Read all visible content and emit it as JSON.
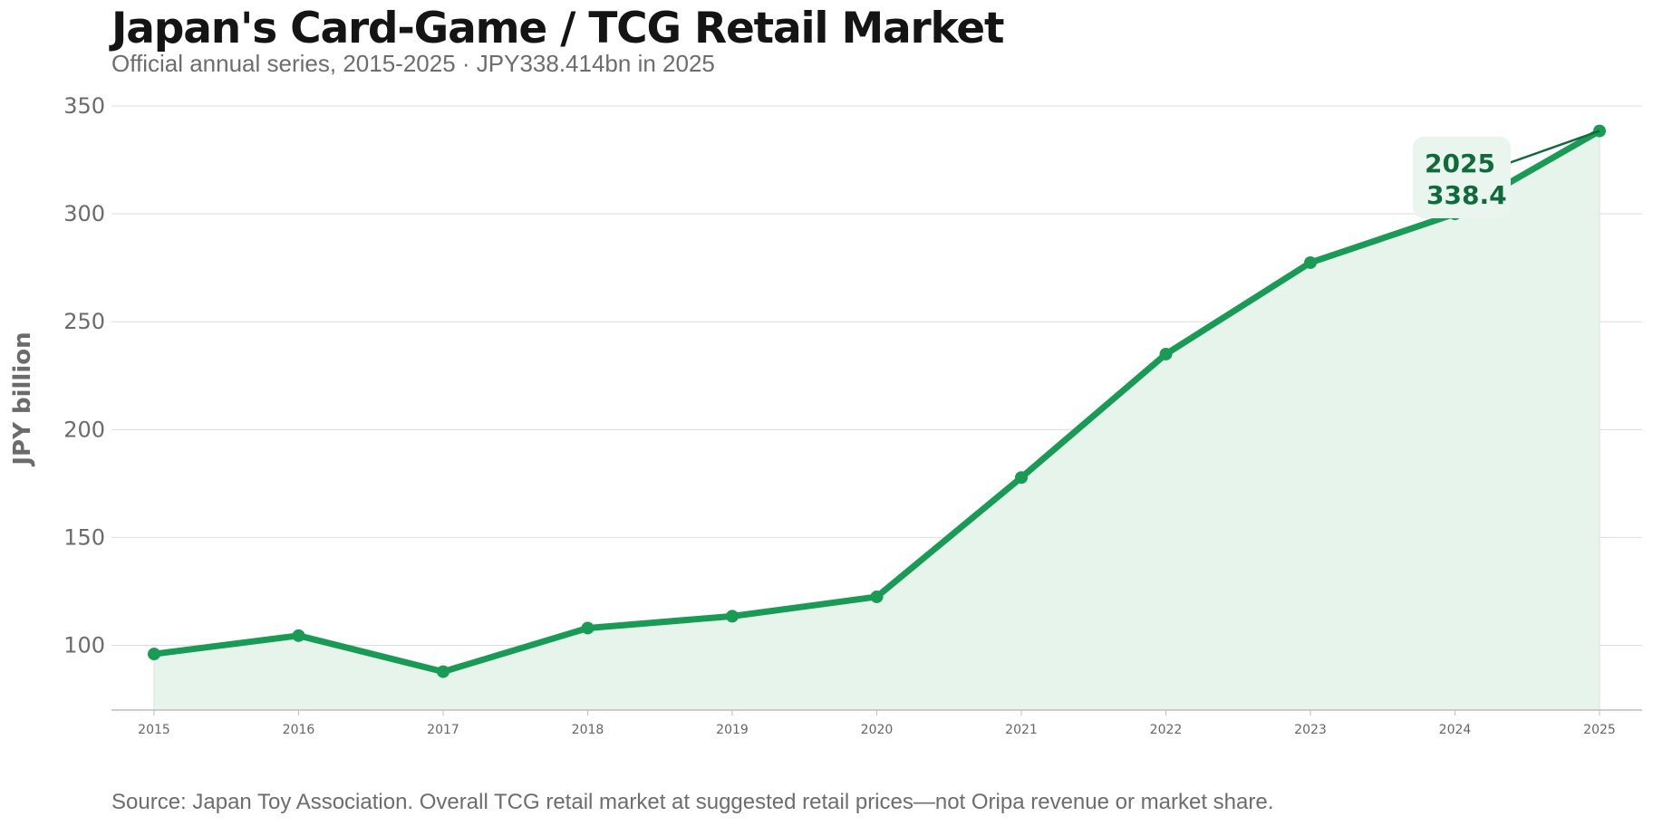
{
  "title": "Japan's Card-Game / TCG Retail Market",
  "subtitle": "Official annual series, 2015-2025 · JPY338.414bn in 2025",
  "source": "Source: Japan Toy Association. Overall TCG retail market at suggested retail prices—not Oripa revenue or market share.",
  "colors": {
    "line": "#1a9b55",
    "fill": "#e6f4ec",
    "grid": "#dddddd",
    "axis": "#bdbdbd",
    "callout_bg": "#e9f5ee",
    "callout_text": "#0f6b3c"
  },
  "chart_data": {
    "type": "area",
    "title": "Japan's Card-Game / TCG Retail Market",
    "subtitle": "Official annual series, 2015-2025 · JPY338.414bn in 2025",
    "xlabel": "",
    "ylabel": "JPY billion",
    "categories": [
      "2015",
      "2016",
      "2017",
      "2018",
      "2019",
      "2020",
      "2021",
      "2022",
      "2023",
      "2024",
      "2025"
    ],
    "series": [
      {
        "values": [
          96.0,
          104.5,
          87.8,
          108.0,
          113.5,
          122.5,
          177.8,
          235.0,
          277.4,
          300.0,
          338.414
        ]
      }
    ],
    "yticks": [
      100,
      150,
      200,
      250,
      300,
      350
    ],
    "ylim": [
      70,
      350
    ],
    "grid": true,
    "annotation": {
      "year": "2025",
      "value": "338.4"
    }
  }
}
